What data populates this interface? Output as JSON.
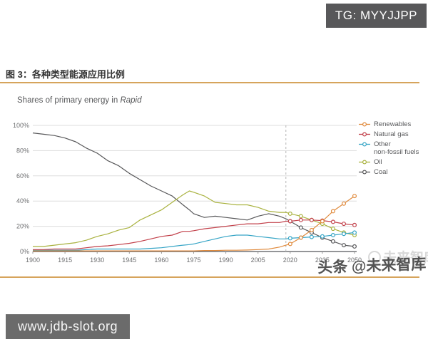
{
  "page": {
    "tg_badge": "TG: MYYJJPP",
    "site_badge": "www.jdb-slot.org",
    "watermark_main": "头条 @未来智库",
    "watermark_ghost": "未来智库"
  },
  "figure": {
    "title": "图 3：各种类型能源应用比例",
    "subtitle_prefix": "Shares of primary energy in ",
    "subtitle_emphasis": "Rapid"
  },
  "colors": {
    "accent_rule": "#D6A45C",
    "badge_bg": "#58585A",
    "site_badge_bg": "#6B6B6B",
    "axis_text": "#6D6E70",
    "grid_line": "#DDDDDD",
    "axis_line": "#55565A",
    "divider_line": "#B5B5B5"
  },
  "chart_data": {
    "type": "line",
    "title": "Shares of primary energy in Rapid",
    "xlabel": "",
    "ylabel": "",
    "xlim": [
      1900,
      2050
    ],
    "ylim": [
      0,
      100
    ],
    "grid": "horizontal",
    "legend_position": "right",
    "y_tick_suffix": "%",
    "yticks": [
      0,
      20,
      40,
      60,
      80,
      100
    ],
    "xticks": [
      1900,
      1915,
      1930,
      1945,
      1960,
      1975,
      1990,
      2005,
      2020,
      2035,
      2050
    ],
    "forecast_divider_year": 2018,
    "marker_years": [
      2020,
      2025,
      2030,
      2035,
      2040,
      2045,
      2050
    ],
    "x": [
      1900,
      1905,
      1910,
      1915,
      1920,
      1925,
      1930,
      1935,
      1940,
      1945,
      1950,
      1955,
      1960,
      1965,
      1970,
      1973,
      1975,
      1980,
      1985,
      1990,
      1995,
      2000,
      2005,
      2010,
      2015,
      2018,
      2020,
      2025,
      2030,
      2035,
      2040,
      2045,
      2050
    ],
    "series": [
      {
        "name": "Renewables",
        "color": "#E08A3C",
        "legend_lines": [
          "Renewables"
        ],
        "values": [
          0.5,
          0.5,
          0.5,
          0.5,
          0.5,
          0.5,
          0.5,
          0.5,
          0.5,
          0.5,
          0.5,
          0.5,
          0.5,
          0.5,
          0.5,
          0.5,
          0.5,
          0.8,
          0.8,
          1,
          1,
          1.2,
          1.5,
          2,
          3.5,
          5,
          6,
          11,
          17,
          24,
          32,
          38,
          44
        ]
      },
      {
        "name": "Natural gas",
        "color": "#C2404A",
        "legend_lines": [
          "Natural gas"
        ],
        "values": [
          1.5,
          1.5,
          2,
          2,
          2,
          3,
          4,
          4.5,
          5.5,
          6.5,
          8,
          10,
          12,
          13,
          16,
          16,
          16.5,
          18,
          19,
          20,
          21,
          22,
          22,
          23,
          23,
          24,
          24,
          25,
          25,
          24.5,
          23.5,
          22,
          21
        ]
      },
      {
        "name": "Other non-fossil fuels",
        "color": "#36A5C6",
        "legend_lines": [
          "Other",
          "non-fossil fuels"
        ],
        "values": [
          1,
          1,
          1,
          1,
          1,
          1.5,
          2,
          2,
          2,
          2,
          2,
          2.5,
          3,
          4,
          5,
          5.5,
          6,
          8,
          10,
          12,
          13,
          13,
          12,
          11,
          10,
          10,
          10.5,
          11,
          11.5,
          12,
          13,
          14,
          15
        ]
      },
      {
        "name": "Oil",
        "color": "#A9B23F",
        "legend_lines": [
          "Oil"
        ],
        "values": [
          4,
          4,
          5,
          6,
          7,
          9,
          12,
          14,
          17,
          19,
          25,
          29,
          33,
          39,
          45,
          48,
          47,
          44,
          39,
          38,
          37,
          37,
          35,
          32,
          31,
          31,
          30,
          28,
          25,
          22,
          18,
          15,
          13
        ]
      },
      {
        "name": "Coal",
        "color": "#58585A",
        "legend_lines": [
          "Coal"
        ],
        "values": [
          94,
          93,
          92,
          90,
          87,
          82,
          78,
          72,
          68,
          62,
          57,
          52,
          48,
          44,
          37,
          33,
          30,
          27,
          28,
          27,
          26,
          25,
          28,
          30,
          28,
          26,
          24,
          19,
          15,
          11,
          8,
          5,
          4
        ]
      }
    ]
  }
}
